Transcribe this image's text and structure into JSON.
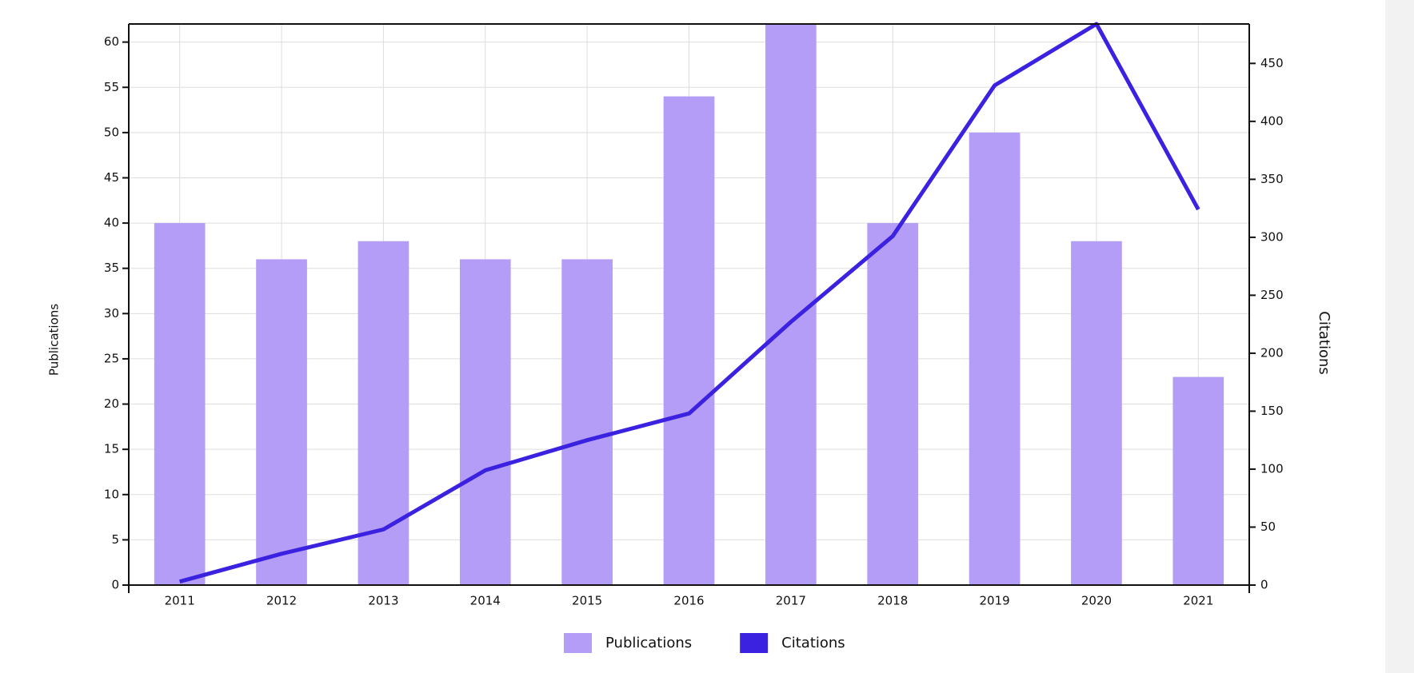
{
  "chart_data": {
    "type": "bar-line",
    "categories": [
      "2011",
      "2012",
      "2013",
      "2014",
      "2015",
      "2016",
      "2017",
      "2018",
      "2019",
      "2020",
      "2021"
    ],
    "series": [
      {
        "name": "Publications",
        "color": "#b39df7",
        "values": [
          40,
          36,
          38,
          36,
          36,
          54,
          62,
          40,
          50,
          38,
          23
        ]
      },
      {
        "name": "Citations",
        "color": "#3b22e0",
        "axis": "y2",
        "values": [
          3,
          27,
          48,
          99,
          125,
          148,
          227,
          301,
          431,
          484,
          324
        ]
      }
    ],
    "y_label": "Publications",
    "y2_label": "Citations",
    "ylim": [
      0,
      62
    ],
    "yticks": [
      0,
      5,
      10,
      15,
      20,
      25,
      30,
      35,
      40,
      45,
      50,
      55,
      60
    ],
    "y2lim": [
      0,
      484
    ],
    "y2ticks": [
      0,
      50,
      100,
      150,
      200,
      250,
      300,
      350,
      400,
      450
    ],
    "grid": true
  }
}
